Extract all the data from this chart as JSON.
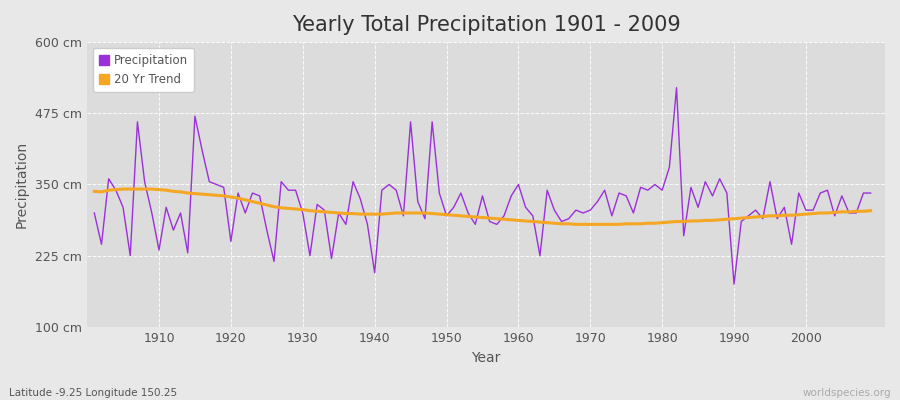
{
  "title": "Yearly Total Precipitation 1901 - 2009",
  "xlabel": "Year",
  "ylabel": "Precipitation",
  "subtitle": "Latitude -9.25 Longitude 150.25",
  "watermark": "worldspecies.org",
  "years": [
    1901,
    1902,
    1903,
    1904,
    1905,
    1906,
    1907,
    1908,
    1909,
    1910,
    1911,
    1912,
    1913,
    1914,
    1915,
    1916,
    1917,
    1918,
    1919,
    1920,
    1921,
    1922,
    1923,
    1924,
    1925,
    1926,
    1927,
    1928,
    1929,
    1930,
    1931,
    1932,
    1933,
    1934,
    1935,
    1936,
    1937,
    1938,
    1939,
    1940,
    1941,
    1942,
    1943,
    1944,
    1945,
    1946,
    1947,
    1948,
    1949,
    1950,
    1951,
    1952,
    1953,
    1954,
    1955,
    1956,
    1957,
    1958,
    1959,
    1960,
    1961,
    1962,
    1963,
    1964,
    1965,
    1966,
    1967,
    1968,
    1969,
    1970,
    1971,
    1972,
    1973,
    1974,
    1975,
    1976,
    1977,
    1978,
    1979,
    1980,
    1981,
    1982,
    1983,
    1984,
    1985,
    1986,
    1987,
    1988,
    1989,
    1990,
    1991,
    1992,
    1993,
    1994,
    1995,
    1996,
    1997,
    1998,
    1999,
    2000,
    2001,
    2002,
    2003,
    2004,
    2005,
    2006,
    2007,
    2008,
    2009
  ],
  "precipitation": [
    300,
    245,
    360,
    340,
    310,
    225,
    460,
    355,
    300,
    235,
    310,
    270,
    300,
    230,
    470,
    410,
    355,
    350,
    345,
    250,
    335,
    300,
    335,
    330,
    270,
    215,
    355,
    340,
    340,
    300,
    225,
    315,
    305,
    220,
    300,
    280,
    355,
    325,
    280,
    195,
    340,
    350,
    340,
    295,
    460,
    320,
    290,
    460,
    335,
    295,
    310,
    335,
    300,
    280,
    330,
    285,
    280,
    295,
    330,
    350,
    310,
    295,
    225,
    340,
    305,
    285,
    290,
    305,
    300,
    305,
    320,
    340,
    295,
    335,
    330,
    300,
    345,
    340,
    350,
    340,
    380,
    520,
    260,
    345,
    310,
    355,
    330,
    360,
    335,
    175,
    285,
    295,
    305,
    290,
    355,
    290,
    310,
    245,
    335,
    305,
    305,
    335,
    340,
    295,
    330,
    300,
    300,
    335,
    335
  ],
  "trend": [
    338,
    337,
    340,
    341,
    342,
    342,
    342,
    342,
    342,
    341,
    340,
    338,
    337,
    335,
    334,
    333,
    332,
    331,
    330,
    328,
    326,
    323,
    320,
    317,
    314,
    311,
    309,
    308,
    307,
    306,
    304,
    303,
    302,
    301,
    300,
    299,
    299,
    298,
    298,
    298,
    298,
    299,
    300,
    300,
    300,
    300,
    300,
    299,
    298,
    297,
    296,
    295,
    294,
    293,
    292,
    291,
    290,
    289,
    288,
    287,
    286,
    285,
    284,
    283,
    282,
    281,
    281,
    280,
    280,
    280,
    280,
    280,
    280,
    280,
    281,
    281,
    281,
    282,
    282,
    283,
    284,
    285,
    285,
    286,
    286,
    287,
    287,
    288,
    289,
    290,
    291,
    292,
    293,
    294,
    295,
    295,
    296,
    296,
    297,
    298,
    299,
    300,
    300,
    301,
    302,
    302,
    303,
    303,
    304
  ],
  "precip_color": "#9b30d9",
  "trend_color": "#f5a623",
  "bg_color": "#e8e8e8",
  "plot_bg_color": "#dcdcdc",
  "grid_color": "#ffffff",
  "ylim": [
    100,
    600
  ],
  "yticks": [
    100,
    225,
    350,
    475,
    600
  ],
  "ytick_labels": [
    "100 cm",
    "225 cm",
    "350 cm",
    "475 cm",
    "600 cm"
  ],
  "xticks": [
    1910,
    1920,
    1930,
    1940,
    1950,
    1960,
    1970,
    1980,
    1990,
    2000
  ],
  "legend_labels": [
    "Precipitation",
    "20 Yr Trend"
  ],
  "title_fontsize": 15,
  "axis_label_fontsize": 10,
  "tick_fontsize": 9
}
